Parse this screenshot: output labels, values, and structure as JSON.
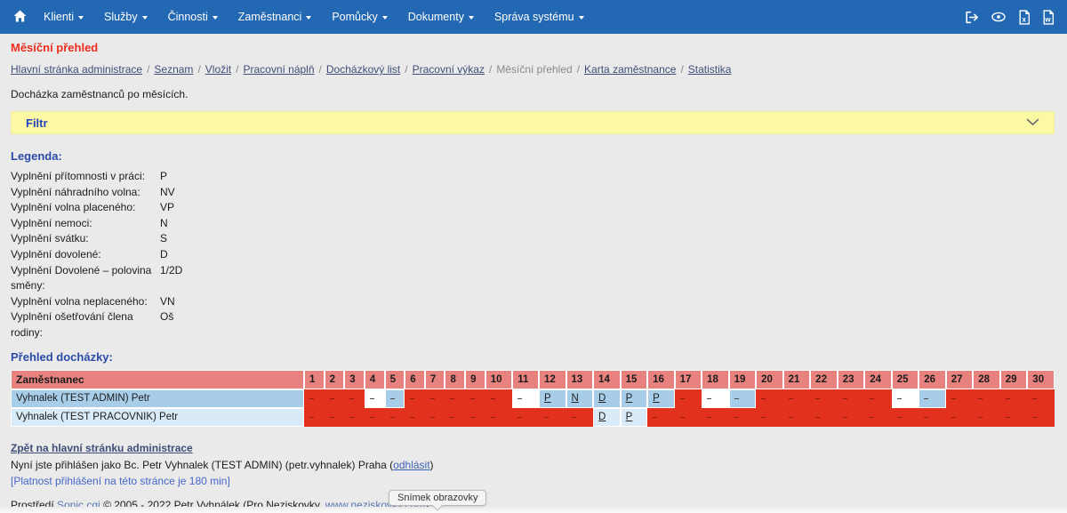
{
  "nav": {
    "items": [
      "Klienti",
      "Služby",
      "Činnosti",
      "Zaměstnanci",
      "Pomůcky",
      "Dokumenty",
      "Správa systému"
    ],
    "right_icons": [
      "logout-icon",
      "eye-icon",
      "export-excel-icon",
      "export-word-icon"
    ]
  },
  "page": {
    "title": "Měsíční přehled",
    "subtitle": "Docházka zaměstnanců po měsících."
  },
  "breadcrumb": {
    "separator": "/",
    "items": [
      {
        "label": "Hlavní stránka administrace",
        "current": false
      },
      {
        "label": "Seznam",
        "current": false
      },
      {
        "label": "Vložit",
        "current": false
      },
      {
        "label": "Pracovní náplň",
        "current": false
      },
      {
        "label": "Docházkový list",
        "current": false
      },
      {
        "label": "Pracovní výkaz",
        "current": false
      },
      {
        "label": "Měsíční přehled",
        "current": true
      },
      {
        "label": "Karta zaměstnance",
        "current": false
      },
      {
        "label": "Statistika",
        "current": false
      }
    ]
  },
  "filter": {
    "label": "Filtr"
  },
  "legend": {
    "heading": "Legenda:",
    "items": [
      {
        "label": "Vyplnění přítomnosti v práci:",
        "code": "P"
      },
      {
        "label": "Vyplnění náhradního volna:",
        "code": "NV"
      },
      {
        "label": "Vyplnění volna placeného:",
        "code": "VP"
      },
      {
        "label": "Vyplnění nemoci:",
        "code": "N"
      },
      {
        "label": "Vyplnění svátku:",
        "code": "S"
      },
      {
        "label": "Vyplnění dovolené:",
        "code": "D"
      },
      {
        "label": "Vyplnění Dovolené – polovina směny:",
        "code": "1/2D"
      },
      {
        "label": "Vyplnění volna neplaceného:",
        "code": "VN"
      },
      {
        "label": "Vyplnění ošetřování člena rodiny:",
        "code": "Oš"
      }
    ]
  },
  "attendance": {
    "heading": "Přehled docházky:",
    "employee_header": "Zaměstnanec",
    "days": [
      1,
      2,
      3,
      4,
      5,
      6,
      7,
      8,
      9,
      10,
      11,
      12,
      13,
      14,
      15,
      16,
      17,
      18,
      19,
      20,
      21,
      22,
      23,
      24,
      25,
      26,
      27,
      28,
      29,
      30
    ],
    "rows": [
      {
        "name": "Vyhnalek (TEST ADMIN) Petr",
        "cells": [
          {
            "day": 1,
            "value": "-",
            "type": "red"
          },
          {
            "day": 2,
            "value": "-",
            "type": "red"
          },
          {
            "day": 3,
            "value": "-",
            "type": "red"
          },
          {
            "day": 4,
            "value": "-",
            "type": "white"
          },
          {
            "day": 5,
            "value": "-",
            "type": "blue"
          },
          {
            "day": 6,
            "value": "-",
            "type": "red"
          },
          {
            "day": 7,
            "value": "-",
            "type": "red"
          },
          {
            "day": 8,
            "value": "-",
            "type": "red"
          },
          {
            "day": 9,
            "value": "-",
            "type": "red"
          },
          {
            "day": 10,
            "value": "-",
            "type": "red"
          },
          {
            "day": 11,
            "value": "-",
            "type": "white"
          },
          {
            "day": 12,
            "value": "P",
            "type": "blue"
          },
          {
            "day": 13,
            "value": "N",
            "type": "blue"
          },
          {
            "day": 14,
            "value": "D",
            "type": "blue"
          },
          {
            "day": 15,
            "value": "P",
            "type": "blue"
          },
          {
            "day": 16,
            "value": "P",
            "type": "blue"
          },
          {
            "day": 17,
            "value": "-",
            "type": "red"
          },
          {
            "day": 18,
            "value": "-",
            "type": "white"
          },
          {
            "day": 19,
            "value": "-",
            "type": "blue"
          },
          {
            "day": 20,
            "value": "-",
            "type": "red"
          },
          {
            "day": 21,
            "value": "-",
            "type": "red"
          },
          {
            "day": 22,
            "value": "-",
            "type": "red"
          },
          {
            "day": 23,
            "value": "-",
            "type": "red"
          },
          {
            "day": 24,
            "value": "-",
            "type": "red"
          },
          {
            "day": 25,
            "value": "-",
            "type": "white"
          },
          {
            "day": 26,
            "value": "-",
            "type": "blue"
          },
          {
            "day": 27,
            "value": "-",
            "type": "red"
          },
          {
            "day": 28,
            "value": "-",
            "type": "red"
          },
          {
            "day": 29,
            "value": "-",
            "type": "red"
          },
          {
            "day": 30,
            "value": "-",
            "type": "red"
          }
        ]
      },
      {
        "name": "Vyhnalek (TEST PRACOVNIK) Petr",
        "cells": [
          {
            "day": 1,
            "value": "-",
            "type": "red"
          },
          {
            "day": 2,
            "value": "-",
            "type": "red"
          },
          {
            "day": 3,
            "value": "-",
            "type": "red"
          },
          {
            "day": 4,
            "value": "-",
            "type": "red"
          },
          {
            "day": 5,
            "value": "-",
            "type": "red"
          },
          {
            "day": 6,
            "value": "-",
            "type": "red"
          },
          {
            "day": 7,
            "value": "-",
            "type": "red"
          },
          {
            "day": 8,
            "value": "-",
            "type": "red"
          },
          {
            "day": 9,
            "value": "-",
            "type": "red"
          },
          {
            "day": 10,
            "value": "-",
            "type": "red"
          },
          {
            "day": 11,
            "value": "-",
            "type": "red"
          },
          {
            "day": 12,
            "value": "-",
            "type": "red"
          },
          {
            "day": 13,
            "value": "-",
            "type": "red"
          },
          {
            "day": 14,
            "value": "D",
            "type": "lightblue"
          },
          {
            "day": 15,
            "value": "P",
            "type": "lightblue"
          },
          {
            "day": 16,
            "value": "-",
            "type": "red"
          },
          {
            "day": 17,
            "value": "-",
            "type": "red"
          },
          {
            "day": 18,
            "value": "-",
            "type": "red"
          },
          {
            "day": 19,
            "value": "-",
            "type": "red"
          },
          {
            "day": 20,
            "value": "-",
            "type": "red"
          },
          {
            "day": 21,
            "value": "-",
            "type": "red"
          },
          {
            "day": 22,
            "value": "-",
            "type": "red"
          },
          {
            "day": 23,
            "value": "-",
            "type": "red"
          },
          {
            "day": 24,
            "value": "-",
            "type": "red"
          },
          {
            "day": 25,
            "value": "-",
            "type": "red"
          },
          {
            "day": 26,
            "value": "-",
            "type": "red"
          },
          {
            "day": 27,
            "value": "-",
            "type": "red"
          },
          {
            "day": 28,
            "value": "-",
            "type": "red"
          },
          {
            "day": 29,
            "value": "-",
            "type": "red"
          },
          {
            "day": 30,
            "value": "-",
            "type": "red"
          }
        ]
      }
    ]
  },
  "session": {
    "back_link": "Zpět na hlavní stránku administrace",
    "status_prefix": "Nyní jste přihlášen jako Bc. Petr Vyhnalek (TEST ADMIN) (petr.vyhnalek)  Praha (",
    "logout_label": "odhlásit",
    "status_suffix": ")",
    "validity_note": "[Platnost přihlášení na této stránce je 180 min]"
  },
  "footer": {
    "prefix": "Prostředí ",
    "app_link": "Sonic.cgi",
    "middle": " © 2005 - 2022 Petr Vyhnálek (Pro Neziskovky, ",
    "site_link": "www.neziskovky.com",
    "suffix": ")."
  },
  "tooltip": {
    "label": "Snímek obrazovky"
  },
  "colors": {
    "nav_bg": "#2368b3",
    "filter_bg": "#fbf9a3",
    "table_header_bg": "#e8827f",
    "cell_red": "#e2311d",
    "cell_blue": "#a7cde9",
    "cell_lightblue": "#d9ebf8",
    "title_red": "#ee2d1f",
    "heading_blue": "#2b4ba8",
    "breadcrumb_link": "#3e4e78"
  }
}
